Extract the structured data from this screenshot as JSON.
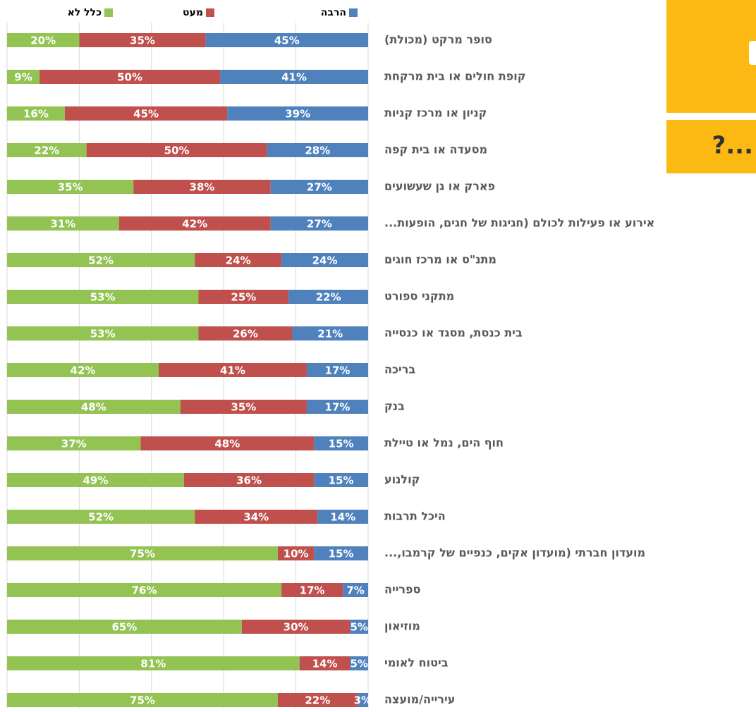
{
  "chart_data": {
    "type": "stacked-barh",
    "categories": [
      "סופר מרקט (מכולת)",
      "קופת חולים או בית מרקחת",
      "קניון או מרכז קניות",
      "מסעדה או בית קפה",
      "פארק או גן שעשועים",
      "אירוע או פעילות לכולם (חגיגות של חגים, הופעות...",
      "מתנ\"ס או מרכז חוגים",
      "מתקני ספורט",
      "בית כנסת, מסגד או כנסייה",
      "בריכה",
      "בנק",
      "חוף הים, נמל או טיילת",
      "קולנוע",
      "היכל תרבות",
      "מועדון חברתי (מועדון אקים, כנפיים של קרמבו,...",
      "ספרייה",
      "מוזיאון",
      "ביטוח לאומי",
      "עירייה/מועצה"
    ],
    "series": [
      {
        "name": "כלל לא",
        "color": "#92c353",
        "values": [
          20,
          9,
          16,
          22,
          35,
          31,
          52,
          53,
          53,
          42,
          48,
          37,
          49,
          52,
          75,
          76,
          65,
          81,
          75
        ],
        "value_labels": [
          "20%",
          "9%",
          "16%",
          "22%",
          "35%",
          "31%",
          "52%",
          "53%",
          "53%",
          "42%",
          "48%",
          "37%",
          "49%",
          "52%",
          "75%",
          "76%",
          "65%",
          "81%",
          "75%"
        ]
      },
      {
        "name": "מעט",
        "color": "#c0504d",
        "values": [
          35,
          50,
          45,
          50,
          38,
          42,
          24,
          25,
          26,
          41,
          35,
          48,
          36,
          34,
          10,
          17,
          30,
          14,
          22
        ],
        "value_labels": [
          "35%",
          "50%",
          "45%",
          "50%",
          "38%",
          "42%",
          "24%",
          "25%",
          "26%",
          "41%",
          "35%",
          "48%",
          "36%",
          "34%",
          "10%",
          "17%",
          "30%",
          "14%",
          "22%"
        ]
      },
      {
        "name": "הרבה",
        "color": "#4f81bd",
        "values": [
          45,
          41,
          39,
          28,
          27,
          27,
          24,
          22,
          21,
          17,
          17,
          15,
          15,
          14,
          15,
          7,
          5,
          5,
          3
        ],
        "value_labels": [
          "45%",
          "41%",
          "39%",
          "28%",
          "27%",
          "27%",
          "24%",
          "22%",
          "21%",
          "17%",
          "17%",
          "15%",
          "15%",
          "14%",
          "15%",
          "7%",
          "5%",
          "5%",
          "3%"
        ]
      }
    ],
    "xlim": [
      0,
      100
    ],
    "xticks": [
      0,
      20,
      40,
      60,
      80,
      100
    ],
    "grid": true
  },
  "side_panel": {
    "text": "?..."
  }
}
